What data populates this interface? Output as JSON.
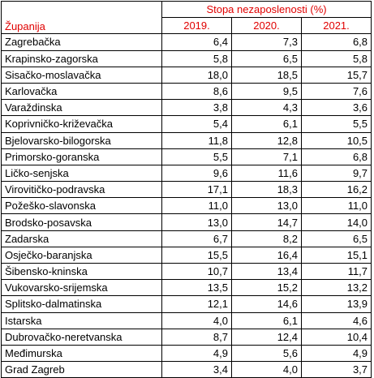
{
  "table": {
    "header": {
      "county": "Županija",
      "group": "Stopa nezaposlenosti (%)",
      "years": [
        "2019.",
        "2020.",
        "2021."
      ]
    },
    "rows": [
      [
        "Zagrebačka",
        "6,4",
        "7,3",
        "6,8"
      ],
      [
        "Krapinsko-zagorska",
        "5,8",
        "6,5",
        "5,8"
      ],
      [
        "Sisačko-moslavačka",
        "18,0",
        "18,5",
        "15,7"
      ],
      [
        "Karlovačka",
        "8,6",
        "9,5",
        "7,6"
      ],
      [
        "Varaždinska",
        "3,8",
        "4,3",
        "3,6"
      ],
      [
        "Koprivničko-križevačka",
        "5,4",
        "6,1",
        "5,5"
      ],
      [
        "Bjelovarsko-bilogorska",
        "11,8",
        "12,8",
        "10,5"
      ],
      [
        "Primorsko-goranska",
        "5,5",
        "7,1",
        "6,8"
      ],
      [
        "Ličko-senjska",
        "9,6",
        "11,6",
        "9,7"
      ],
      [
        "Virovitičko-podravska",
        "17,1",
        "18,3",
        "16,2"
      ],
      [
        "Požeško-slavonska",
        "11,0",
        "13,0",
        "11,0"
      ],
      [
        "Brodsko-posavska",
        "13,0",
        "14,7",
        "14,0"
      ],
      [
        "Zadarska",
        "6,7",
        "8,2",
        "6,5"
      ],
      [
        "Osječko-baranjska",
        "15,5",
        "16,4",
        "15,1"
      ],
      [
        "Šibensko-kninska",
        "10,7",
        "13,4",
        "11,7"
      ],
      [
        "Vukovarsko-srijemska",
        "13,5",
        "15,2",
        "13,2"
      ],
      [
        "Splitsko-dalmatinska",
        "12,1",
        "14,6",
        "13,9"
      ],
      [
        "Istarska",
        "4,0",
        "6,1",
        "4,6"
      ],
      [
        "Dubrovačko-neretvanska",
        "8,7",
        "12,4",
        "10,4"
      ],
      [
        "Međimurska",
        "4,9",
        "5,6",
        "4,9"
      ],
      [
        "Grad Zagreb",
        "3,4",
        "4,0",
        "3,7"
      ]
    ]
  }
}
